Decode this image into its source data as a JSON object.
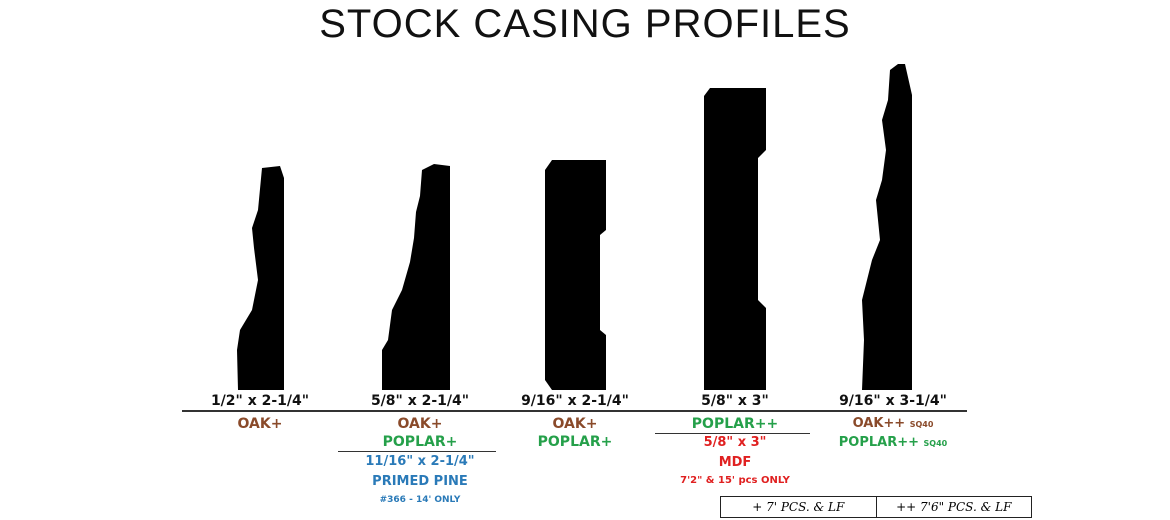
{
  "title": "STOCK CASING PROFILES",
  "profiles": [
    {
      "dimension": "1/2\" x 2-1/4\"",
      "species": [
        "OAK+"
      ]
    },
    {
      "dimension": "5/8\" x 2-1/4\"",
      "species": [
        "OAK+",
        "POPLAR+"
      ],
      "alt": {
        "dimension": "11/16\" x 2-1/4\"",
        "material": "PRIMED PINE",
        "note": "#366 - 14' ONLY"
      }
    },
    {
      "dimension": "9/16\" x 2-1/4\"",
      "species": [
        "OAK+",
        "POPLAR+"
      ]
    },
    {
      "dimension": "5/8\" x 3\"",
      "species": [
        "POPLAR++"
      ],
      "alt": {
        "dimension": "5/8\" x 3\"",
        "material": "MDF",
        "note": "7'2\" & 15' pcs ONLY"
      }
    },
    {
      "dimension": "9/16\" x  3-1/4\"",
      "species": [
        "OAK++",
        "POPLAR++"
      ],
      "suffix": "SQ40"
    }
  ],
  "legend": [
    "+ 7' PCS. & LF",
    "++ 7'6\" PCS. & LF"
  ],
  "colors": {
    "profile": "#000000",
    "oak": "#8a4a2a",
    "poplar": "#25a04a",
    "mdf": "#e02020",
    "pine": "#2a7ab8"
  }
}
